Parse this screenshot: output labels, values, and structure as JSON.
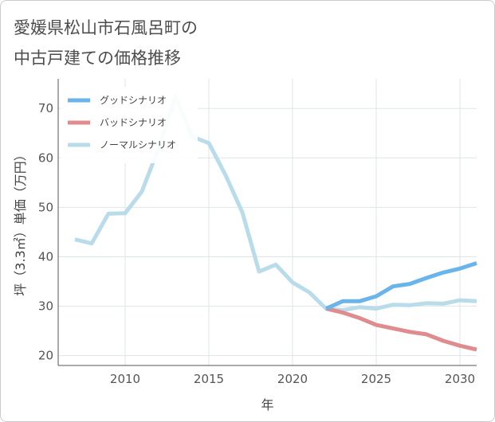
{
  "header": {
    "title_line1": "愛媛県松山市石風呂町の",
    "title_line2": "中古戸建ての価格推移"
  },
  "chart_data": {
    "type": "line",
    "title": "愛媛県松山市石風呂町の中古戸建ての価格推移",
    "xlabel": "年",
    "ylabel": "坪（3.3㎡）単価（万円）",
    "xlim": [
      2006,
      2031
    ],
    "ylim": [
      18,
      76
    ],
    "xticks": [
      2010,
      2015,
      2020,
      2025,
      2030
    ],
    "yticks": [
      20,
      30,
      40,
      50,
      60,
      70
    ],
    "legend_position": "top-left",
    "series": [
      {
        "name": "グッドシナリオ",
        "color": "#6ab4ec",
        "x": [
          2022,
          2023,
          2024,
          2025,
          2026,
          2027,
          2028,
          2029,
          2030,
          2031
        ],
        "values": [
          29.5,
          31.0,
          31.0,
          32.0,
          34.0,
          34.5,
          35.7,
          36.8,
          37.6,
          38.7
        ]
      },
      {
        "name": "バッドシナリオ",
        "color": "#e08c8e",
        "x": [
          2022,
          2023,
          2024,
          2025,
          2026,
          2027,
          2028,
          2029,
          2030,
          2031
        ],
        "values": [
          29.5,
          28.7,
          27.6,
          26.2,
          25.5,
          24.8,
          24.3,
          23.0,
          22.0,
          21.2
        ]
      },
      {
        "name": "ノーマルシナリオ",
        "color": "#b9dcea",
        "x": [
          2007,
          2008,
          2009,
          2010,
          2011,
          2012,
          2013,
          2014,
          2015,
          2016,
          2017,
          2018,
          2019,
          2020,
          2021,
          2022,
          2023,
          2024,
          2025,
          2026,
          2027,
          2028,
          2029,
          2030,
          2031
        ],
        "values": [
          43.5,
          42.7,
          48.7,
          48.8,
          53.2,
          62.0,
          72.5,
          64.3,
          63.0,
          56.5,
          49.0,
          37.0,
          38.4,
          34.8,
          32.8,
          29.5,
          29.2,
          29.8,
          29.5,
          30.3,
          30.2,
          30.6,
          30.5,
          31.2,
          31.0
        ]
      }
    ]
  }
}
